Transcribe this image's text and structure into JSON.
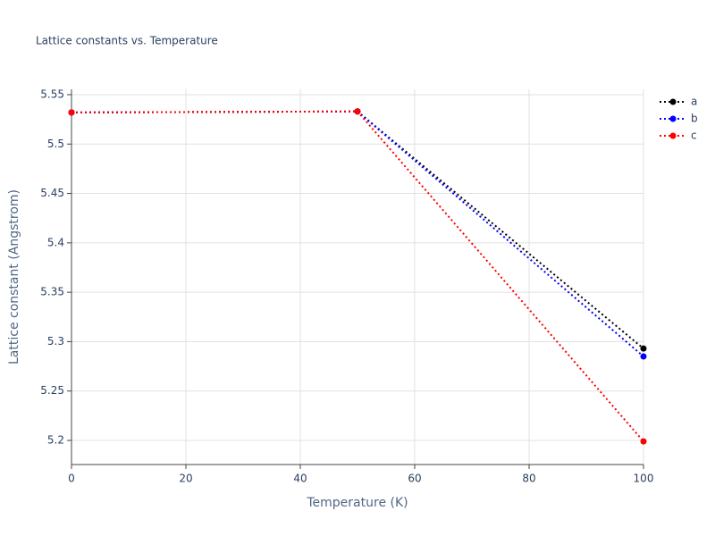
{
  "chart_data": {
    "type": "line",
    "title": "Lattice constants vs. Temperature",
    "x_label": "Temperature (K)",
    "y_label": "Lattice constant (Angstrom)",
    "x": [
      0,
      50,
      100
    ],
    "series": [
      {
        "name": "a",
        "color": "#000000",
        "values": [
          5.532,
          5.533,
          5.293
        ]
      },
      {
        "name": "b",
        "color": "#0000ff",
        "values": [
          5.532,
          5.533,
          5.285
        ]
      },
      {
        "name": "c",
        "color": "#ff0000",
        "values": [
          5.532,
          5.533,
          5.199
        ]
      }
    ],
    "xlim": [
      0,
      100
    ],
    "xticks": [
      0,
      20,
      40,
      60,
      80,
      100
    ],
    "ylim": [
      5.1756,
      5.5554
    ],
    "yticks": [
      5.2,
      5.25,
      5.3,
      5.35,
      5.4,
      5.45,
      5.5,
      5.55
    ],
    "grid": true,
    "legend": "top-right"
  }
}
